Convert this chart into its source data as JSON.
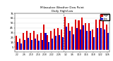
{
  "title": "Milwaukee Weather Dew Point",
  "subtitle": "Daily High/Low",
  "color_high": "#dd0000",
  "color_low": "#0000cc",
  "background_color": "#ffffff",
  "ylim": [
    -5,
    75
  ],
  "yticks": [
    5,
    15,
    25,
    35,
    45,
    55,
    65,
    75
  ],
  "ytick_labels": [
    "5",
    "15",
    "25",
    "35",
    "45",
    "55",
    "65",
    "75"
  ],
  "vline_pos": 13.5,
  "categories": [
    "2/2",
    "2/4",
    "2/6",
    "2/8",
    "2/10",
    "2/12",
    "2/14",
    "2/16",
    "2/18",
    "2/20",
    "2/22",
    "2/24",
    "2/26",
    "2/28",
    "3/2",
    "3/4",
    "3/6",
    "3/8",
    "3/10",
    "3/12",
    "3/14",
    "3/16",
    "3/18",
    "3/20",
    "3/22",
    "3/24",
    "3/26"
  ],
  "high_values": [
    28,
    22,
    35,
    38,
    35,
    38,
    32,
    35,
    52,
    30,
    38,
    43,
    45,
    42,
    68,
    55,
    48,
    62,
    60,
    67,
    55,
    55,
    42,
    62,
    62,
    60,
    52
  ],
  "low_values": [
    15,
    12,
    20,
    24,
    20,
    22,
    18,
    20,
    35,
    15,
    22,
    28,
    30,
    25,
    48,
    38,
    32,
    44,
    42,
    50,
    38,
    38,
    25,
    44,
    45,
    42,
    35
  ]
}
